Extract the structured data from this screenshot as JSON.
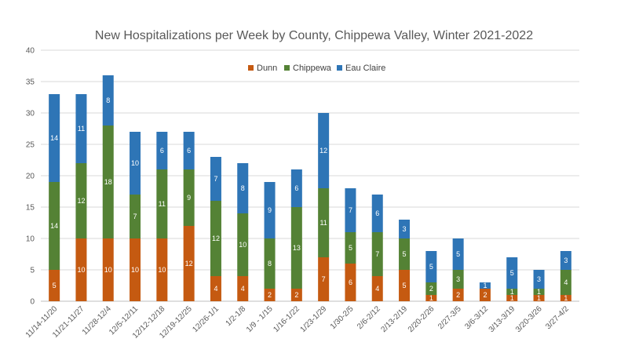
{
  "chart_data": {
    "type": "bar",
    "stacked": true,
    "title": "New Hospitalizations per Week by County, Chippewa Valley, Winter 2021-2022",
    "xlabel": "",
    "ylabel": "",
    "ylim": [
      0,
      40
    ],
    "yticks": [
      0,
      5,
      10,
      15,
      20,
      25,
      30,
      35,
      40
    ],
    "grid": true,
    "legend_position": "top",
    "categories": [
      "11/14-11/20",
      "11/21-11/27",
      "11/28-12/4",
      "12/5-12/11",
      "12/12-12/18",
      "12/19-12/25",
      "12/26-1/1",
      "1/2-1/8",
      "1/9 - 1/15",
      "1/16-1/22",
      "1/23-1/29",
      "1/30-2/5",
      "2/6-2/12",
      "2/13-2/19",
      "2/20-2/26",
      "2/27-3/5",
      "3/6-3/12",
      "3/13-3/19",
      "3/20-3/26",
      "3/27-4/2"
    ],
    "series": [
      {
        "name": "Dunn",
        "color": "#C55A11",
        "values": [
          5,
          10,
          10,
          10,
          10,
          12,
          4,
          4,
          2,
          2,
          7,
          6,
          4,
          5,
          1,
          2,
          2,
          1,
          1,
          1
        ]
      },
      {
        "name": "Chippewa",
        "color": "#548235",
        "values": [
          14,
          12,
          18,
          7,
          11,
          9,
          12,
          10,
          8,
          13,
          11,
          5,
          7,
          5,
          2,
          3,
          0,
          1,
          1,
          4
        ]
      },
      {
        "name": "Eau Claire",
        "color": "#2E75B6",
        "values": [
          14,
          11,
          8,
          10,
          6,
          6,
          7,
          8,
          9,
          6,
          12,
          7,
          6,
          3,
          5,
          5,
          1,
          5,
          3,
          3
        ]
      }
    ]
  }
}
